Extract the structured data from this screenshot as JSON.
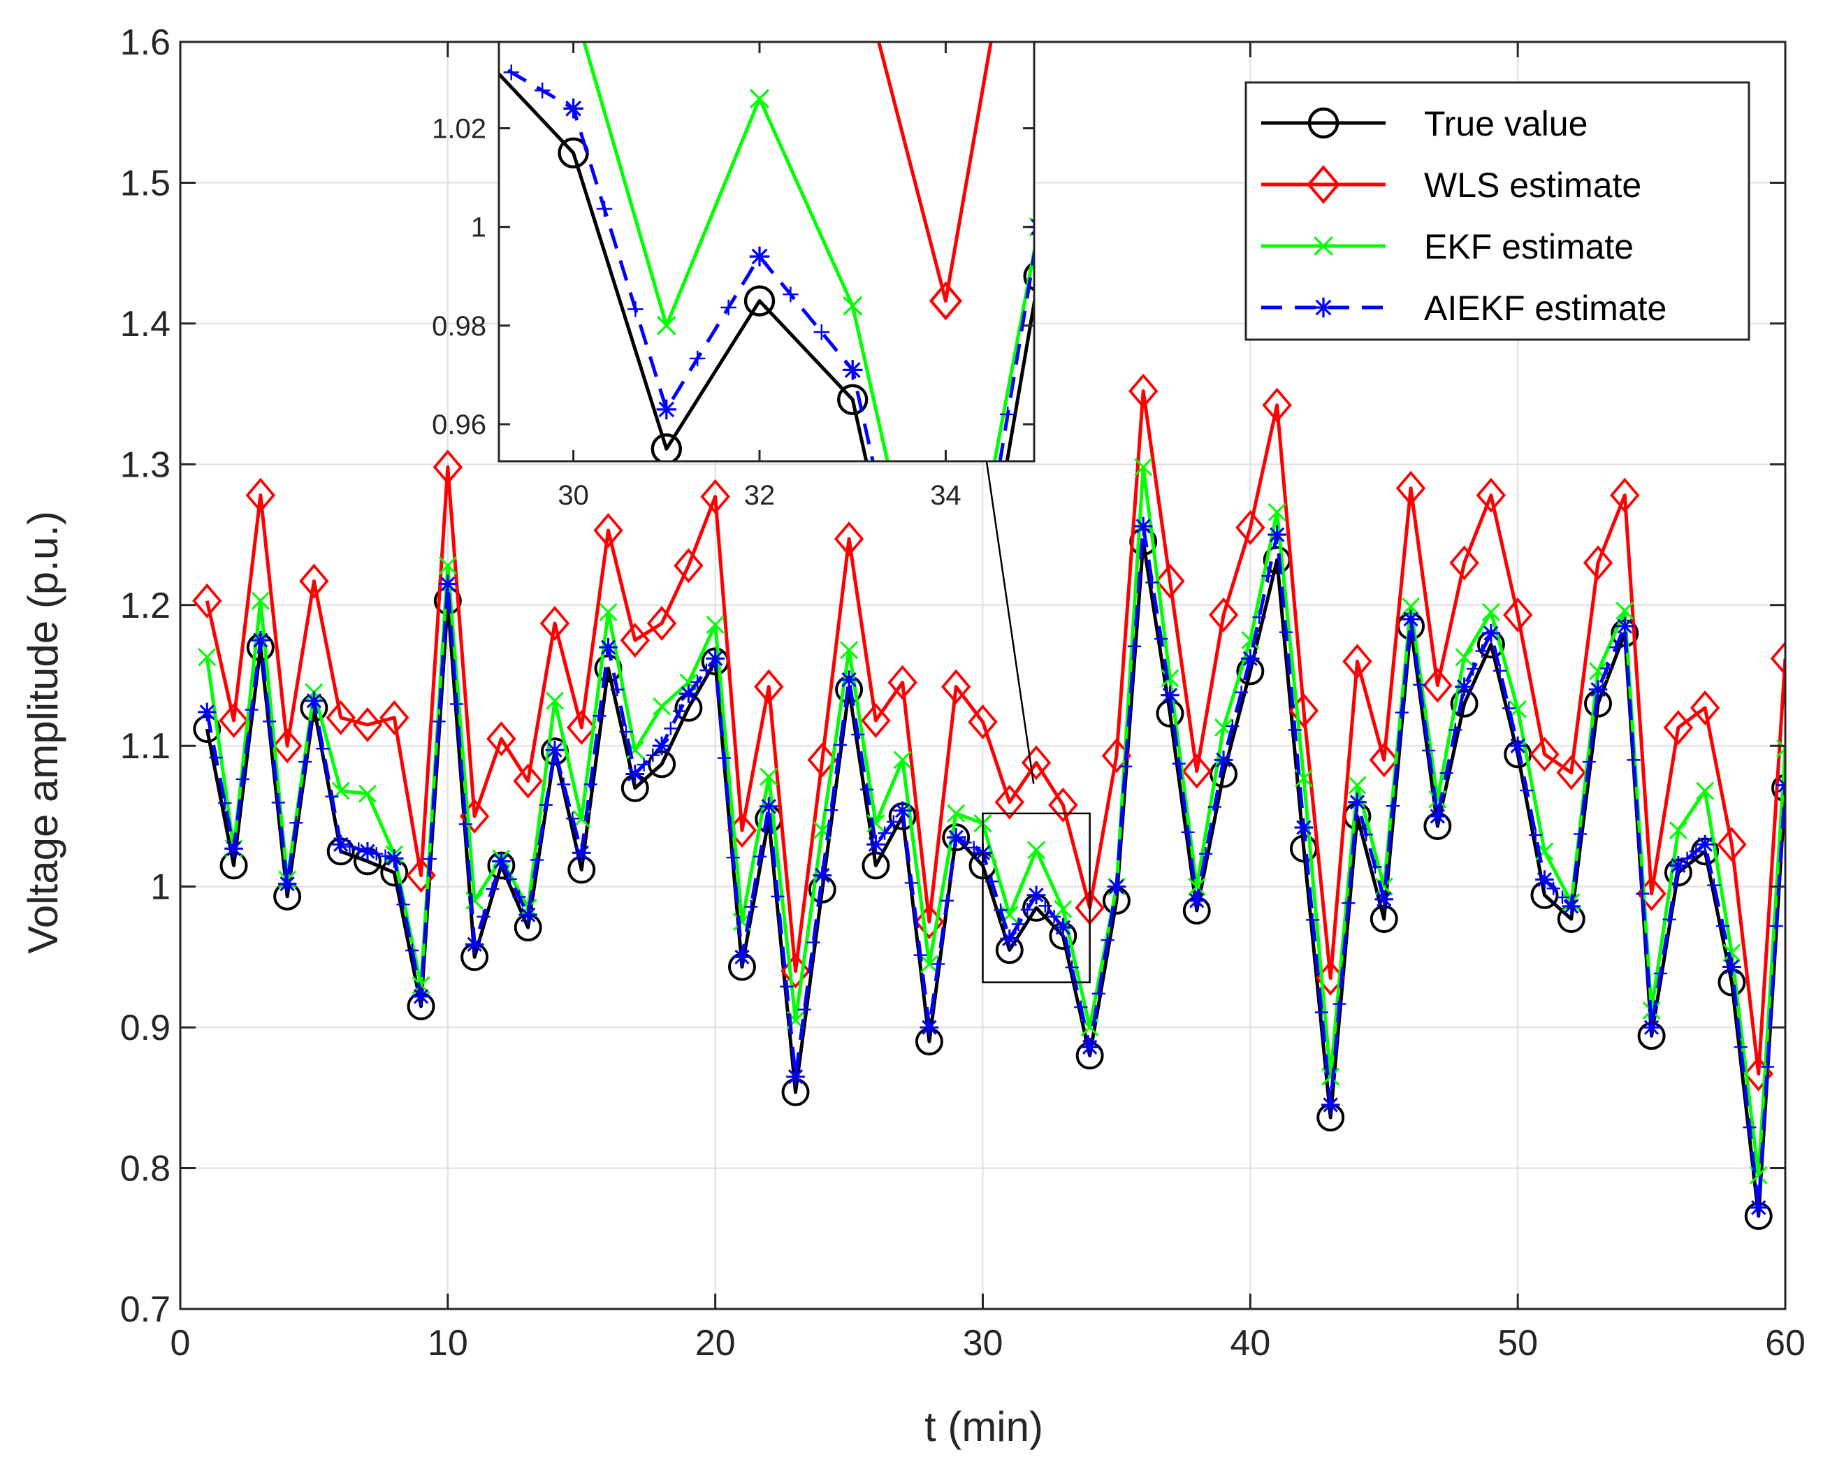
{
  "chart_data": [
    {
      "type": "line",
      "name": "main",
      "title": "",
      "xlabel": "t (min)",
      "ylabel": "Voltage amplitude (p.u.)",
      "xlim": [
        0,
        60
      ],
      "ylim": [
        0.7,
        1.6
      ],
      "xticks": [
        0,
        10,
        20,
        30,
        40,
        50,
        60
      ],
      "xtick_labels": [
        "0",
        "10",
        "20",
        "30",
        "40",
        "50",
        "60"
      ],
      "yticks": [
        0.7,
        0.8,
        0.9,
        1.0,
        1.1,
        1.2,
        1.3,
        1.4,
        1.5,
        1.6
      ],
      "ytick_labels": [
        "0.7",
        "0.8",
        "0.9",
        "1",
        "1.1",
        "1.2",
        "1.3",
        "1.4",
        "1.5",
        "1.6"
      ],
      "grid": true,
      "legend_position": "top-right",
      "x": [
        1,
        2,
        3,
        4,
        5,
        6,
        7,
        8,
        9,
        10,
        11,
        12,
        13,
        14,
        15,
        16,
        17,
        18,
        19,
        20,
        21,
        22,
        23,
        24,
        25,
        26,
        27,
        28,
        29,
        30,
        31,
        32,
        33,
        34,
        35,
        36,
        37,
        38,
        39,
        40,
        41,
        42,
        43,
        44,
        45,
        46,
        47,
        48,
        49,
        50,
        51,
        52,
        53,
        54,
        55,
        56,
        57,
        58,
        59,
        60
      ],
      "series": [
        {
          "name": "True value",
          "color": "#000000",
          "marker": "circle",
          "dashed": false,
          "values": [
            1.112,
            1.015,
            1.17,
            0.993,
            1.127,
            1.025,
            1.018,
            1.01,
            0.915,
            1.203,
            0.95,
            1.015,
            0.971,
            1.096,
            1.012,
            1.155,
            1.07,
            1.087,
            1.127,
            1.16,
            0.943,
            1.048,
            0.854,
            0.998,
            1.14,
            1.015,
            1.05,
            0.89,
            1.035,
            1.015,
            0.955,
            0.985,
            0.965,
            0.88,
            0.99,
            1.245,
            1.123,
            0.983,
            1.08,
            1.153,
            1.232,
            1.027,
            0.836,
            1.05,
            0.977,
            1.185,
            1.043,
            1.13,
            1.172,
            1.094,
            0.994,
            0.977,
            1.13,
            1.18,
            0.894,
            1.01,
            1.025,
            0.932,
            0.766,
            1.07
          ]
        },
        {
          "name": "WLS estimate",
          "color": "#ff0000",
          "marker": "diamond",
          "dashed": false,
          "values": [
            1.203,
            1.118,
            1.278,
            1.1,
            1.217,
            1.12,
            1.115,
            1.12,
            1.008,
            1.298,
            1.05,
            1.105,
            1.075,
            1.187,
            1.113,
            1.253,
            1.175,
            1.187,
            1.228,
            1.277,
            1.04,
            1.142,
            0.94,
            1.09,
            1.247,
            1.118,
            1.145,
            0.975,
            1.142,
            1.117,
            1.06,
            1.088,
            1.058,
            0.985,
            1.093,
            1.352,
            1.217,
            1.082,
            1.193,
            1.255,
            1.342,
            1.125,
            0.935,
            1.16,
            1.09,
            1.283,
            1.143,
            1.23,
            1.278,
            1.193,
            1.094,
            1.081,
            1.23,
            1.278,
            0.995,
            1.113,
            1.127,
            1.03,
            0.867,
            1.162
          ]
        },
        {
          "name": "EKF estimate",
          "color": "#00ff00",
          "marker": "x",
          "dashed": false,
          "values": [
            1.163,
            1.027,
            1.203,
            1.005,
            1.138,
            1.068,
            1.066,
            1.023,
            0.93,
            1.228,
            0.99,
            1.02,
            0.985,
            1.132,
            1.048,
            1.195,
            1.097,
            1.128,
            1.145,
            1.186,
            0.975,
            1.078,
            0.905,
            1.04,
            1.168,
            1.045,
            1.09,
            0.945,
            1.052,
            1.045,
            0.98,
            1.026,
            0.984,
            0.9,
            1.0,
            1.298,
            1.148,
            1.0,
            1.113,
            1.175,
            1.266,
            1.077,
            0.865,
            1.072,
            1.0,
            1.199,
            1.062,
            1.163,
            1.195,
            1.126,
            1.025,
            0.989,
            1.153,
            1.196,
            0.912,
            1.04,
            1.068,
            0.953,
            0.795,
            1.098
          ]
        },
        {
          "name": "AIEKF estimate",
          "color": "#0000ff",
          "marker": "asterisk",
          "dashed": true,
          "values": [
            1.124,
            1.027,
            1.175,
            1.002,
            1.132,
            1.03,
            1.025,
            1.02,
            0.922,
            1.215,
            0.959,
            1.018,
            0.98,
            1.097,
            1.024,
            1.17,
            1.08,
            1.1,
            1.137,
            1.162,
            0.95,
            1.057,
            0.865,
            1.008,
            1.147,
            1.03,
            1.054,
            0.9,
            1.035,
            1.024,
            0.963,
            0.994,
            0.971,
            0.886,
            1.0,
            1.256,
            1.136,
            0.99,
            1.09,
            1.162,
            1.25,
            1.042,
            0.845,
            1.06,
            0.991,
            1.19,
            1.05,
            1.142,
            1.18,
            1.1,
            1.005,
            0.986,
            1.14,
            1.185,
            0.9,
            1.015,
            1.03,
            0.943,
            0.772,
            1.072
          ]
        }
      ]
    },
    {
      "type": "line",
      "name": "inset",
      "title": "",
      "xlim": [
        29.2,
        34.95
      ],
      "ylim": [
        0.9525,
        1.0375
      ],
      "xticks": [
        30,
        32,
        34
      ],
      "xtick_labels": [
        "30",
        "32",
        "34"
      ],
      "yticks": [
        0.96,
        0.98,
        1.0,
        1.02
      ],
      "ytick_labels": [
        "0.96",
        "0.98",
        "1",
        "1.02"
      ],
      "zoom_box": {
        "x": [
          30,
          34
        ],
        "y": [
          0.932,
          1.052
        ]
      },
      "grid": false
    }
  ]
}
